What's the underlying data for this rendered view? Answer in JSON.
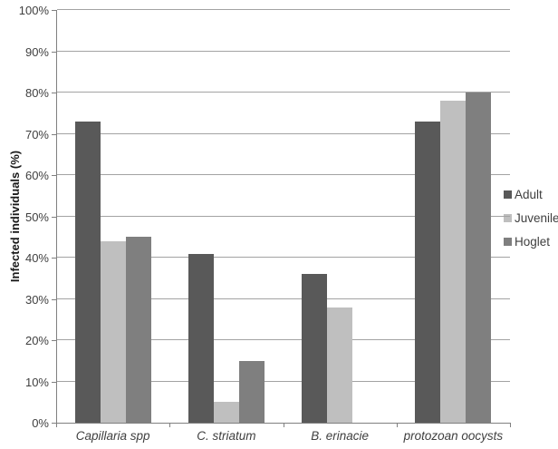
{
  "chart_data": {
    "type": "bar",
    "title": "",
    "xlabel": "",
    "ylabel": "Infected individuals (%)",
    "ylim": [
      0,
      100
    ],
    "ytick_step": 10,
    "ytick_labels": [
      "0%",
      "10%",
      "20%",
      "30%",
      "40%",
      "50%",
      "60%",
      "70%",
      "80%",
      "90%",
      "100%"
    ],
    "grid": "horizontal",
    "legend_position": "right",
    "categories": [
      "Capillaria spp",
      "C. striatum",
      "B. erinacie",
      "protozoan oocysts"
    ],
    "series": [
      {
        "name": "Adult",
        "color": "#595959",
        "values": [
          73,
          41,
          36,
          73
        ]
      },
      {
        "name": "Juvenile",
        "color": "#bfbfbf",
        "values": [
          44,
          5,
          28,
          78
        ]
      },
      {
        "name": "Hoglet",
        "color": "#7f7f7f",
        "values": [
          45,
          15,
          0,
          80
        ]
      }
    ]
  },
  "colors": {
    "axis": "#808080",
    "gridline": "#a3a3a3",
    "text": "#3f3f3f",
    "background": "#ffffff"
  }
}
